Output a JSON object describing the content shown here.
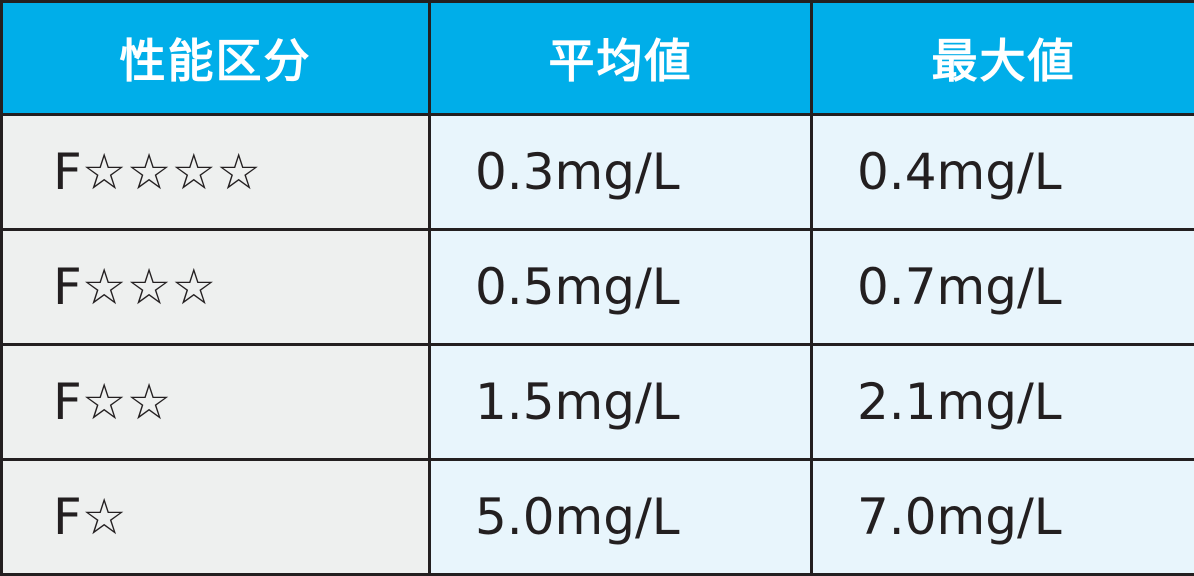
{
  "table": {
    "headers": [
      "性能区分",
      "平均値",
      "最大値"
    ],
    "rows": [
      [
        "F☆☆☆☆",
        "0.3mg/L",
        "0.4mg/L"
      ],
      [
        "F☆☆☆",
        "0.5mg/L",
        "0.7mg/L"
      ],
      [
        "F☆☆",
        "1.5mg/L",
        "2.1mg/L"
      ],
      [
        "F☆",
        "5.0mg/L",
        "7.0mg/L"
      ]
    ]
  },
  "colors": {
    "header_bg": "#00aee9",
    "header_text": "#ffffff",
    "first_col_bg": "#eef0ef",
    "value_bg": "#e8f5fc",
    "border": "#231f20"
  }
}
